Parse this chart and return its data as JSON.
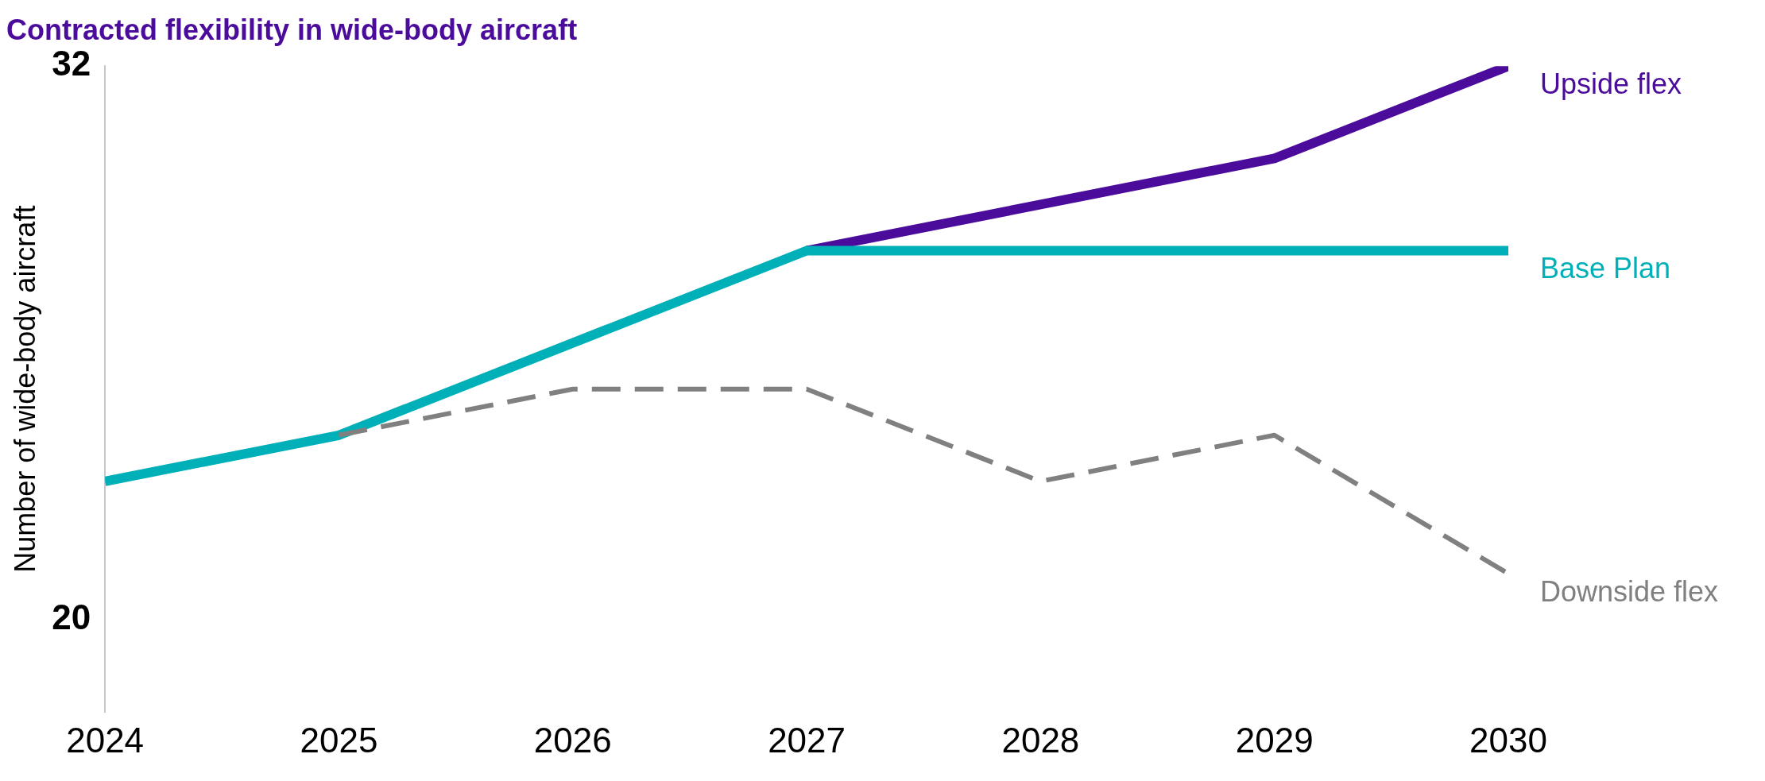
{
  "chart_data": {
    "type": "line",
    "title": "Contracted flexibility in wide-body aircraft",
    "ylabel": "Number of wide-body aircraft",
    "x": [
      2024,
      2025,
      2026,
      2027,
      2028,
      2029,
      2030
    ],
    "xlim": [
      2024,
      2030
    ],
    "xticks": [
      2024,
      2025,
      2026,
      2027,
      2028,
      2029,
      2030
    ],
    "ylim": [
      18,
      32
    ],
    "yticks": [
      20,
      32
    ],
    "grid": false,
    "legend": false,
    "marker": "none",
    "series": [
      {
        "name": "Upside flex",
        "color": "#4b0c9c",
        "line_style": "solid",
        "values": [
          null,
          null,
          null,
          28,
          29,
          30,
          32
        ]
      },
      {
        "name": "Base Plan",
        "color": "#00b0b9",
        "line_style": "solid",
        "values": [
          23,
          24,
          26,
          28,
          28,
          28,
          28
        ]
      },
      {
        "name": "Downside flex",
        "color": "#808080",
        "line_style": "dashed",
        "values": [
          null,
          24,
          25,
          25,
          23,
          24,
          21
        ]
      }
    ]
  }
}
